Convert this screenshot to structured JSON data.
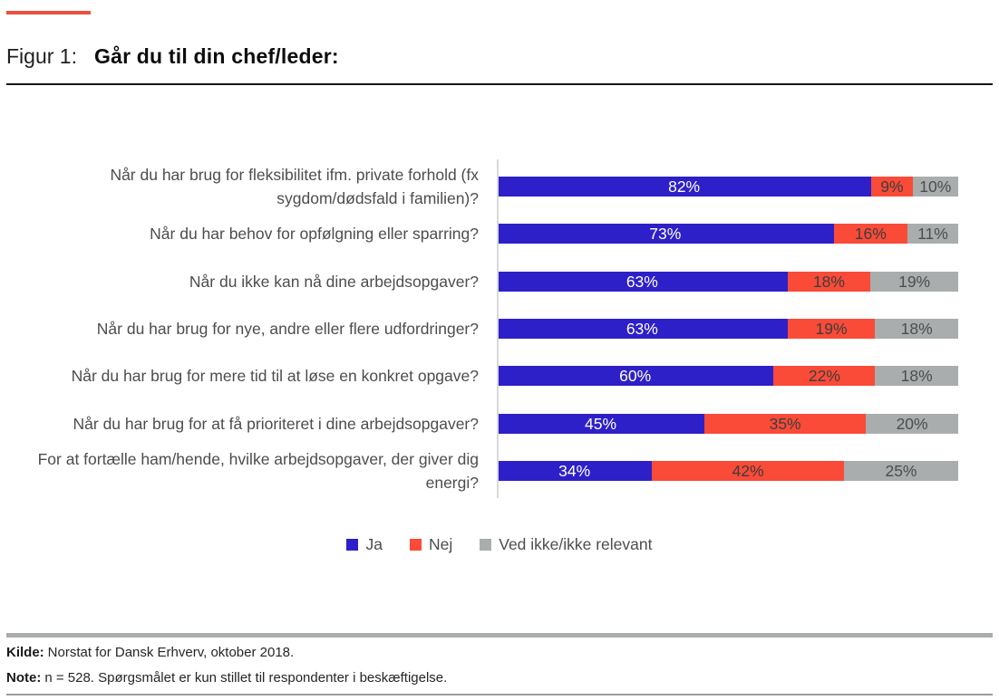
{
  "figure": {
    "label": "Figur 1:",
    "title": "Går du til din chef/leder:"
  },
  "accent": {
    "top_dash_color": "#e8523e"
  },
  "chart_data": {
    "type": "bar",
    "orientation": "horizontal",
    "stacked": true,
    "normalized_rows": true,
    "value_suffix": "%",
    "xlim": [
      0,
      100
    ],
    "grid": false,
    "legend_position": "bottom",
    "categories": [
      "Når du har brug for fleksibilitet ifm. private forhold (fx sygdom/dødsfald i familien)?",
      "Når du har behov for opfølgning eller sparring?",
      "Når du ikke kan nå dine arbejdsopgaver?",
      "Når du har brug for nye, andre eller flere udfordringer?",
      "Når du har brug for mere tid til at løse en konkret opgave?",
      "Når du har brug for at få prioriteret i dine arbejdsopgaver?",
      "For at fortælle ham/hende, hvilke arbejdsopgaver, der giver dig energi?"
    ],
    "series": [
      {
        "name": "Ja",
        "color": "#2e20c8",
        "label_color": "#ffffff",
        "values": [
          82,
          73,
          63,
          63,
          60,
          45,
          34
        ]
      },
      {
        "name": "Nej",
        "color": "#f94b38",
        "label_color": "#3d3d3d",
        "values": [
          9,
          16,
          18,
          19,
          22,
          35,
          42
        ]
      },
      {
        "name": "Ved ikke/ikke relevant",
        "color": "#a9adad",
        "label_color": "#4d4d4d",
        "values": [
          10,
          11,
          19,
          18,
          18,
          20,
          25
        ]
      }
    ]
  },
  "footer": {
    "source_label": "Kilde:",
    "source_text": "Norstat for Dansk Erhverv, oktober 2018.",
    "note_label": "Note:",
    "note_text": "n = 528. Spørgsmålet er kun stillet til respondenter i beskæftigelse."
  }
}
